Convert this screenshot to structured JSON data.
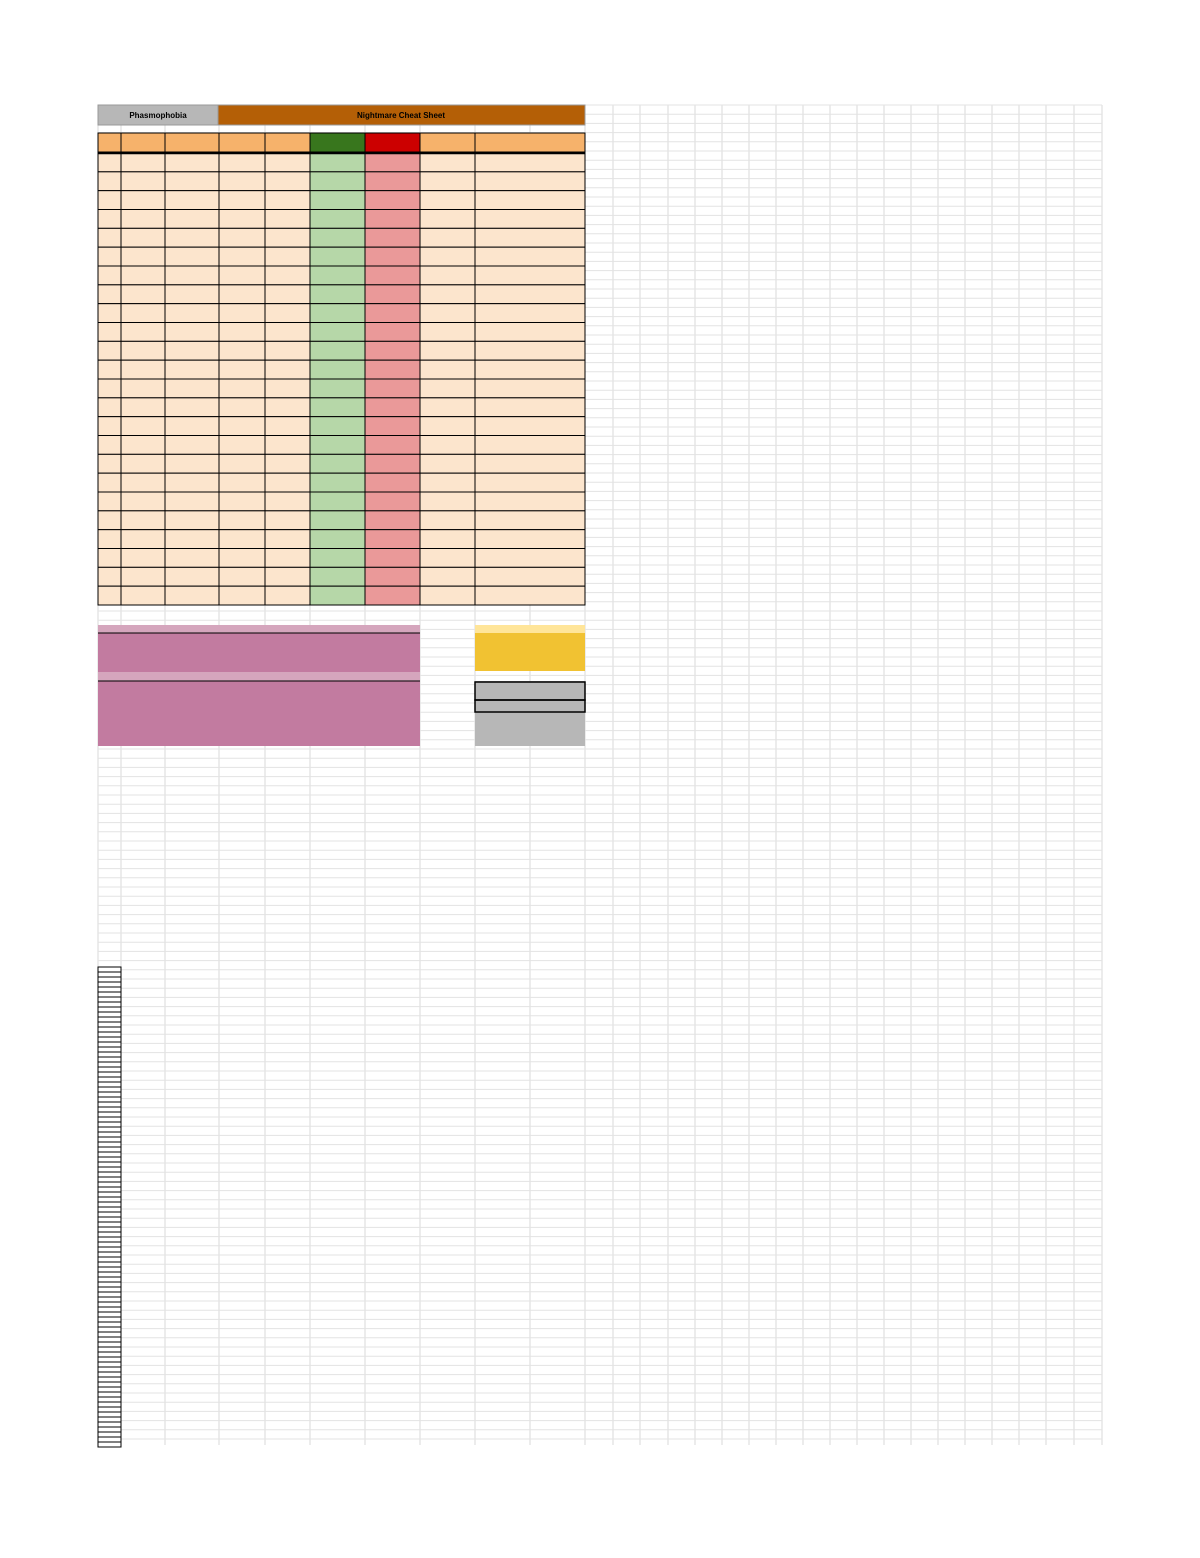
{
  "header": {
    "left_title": "Phasmophobia",
    "title": "Nightmare Cheat Sheet"
  }
}
